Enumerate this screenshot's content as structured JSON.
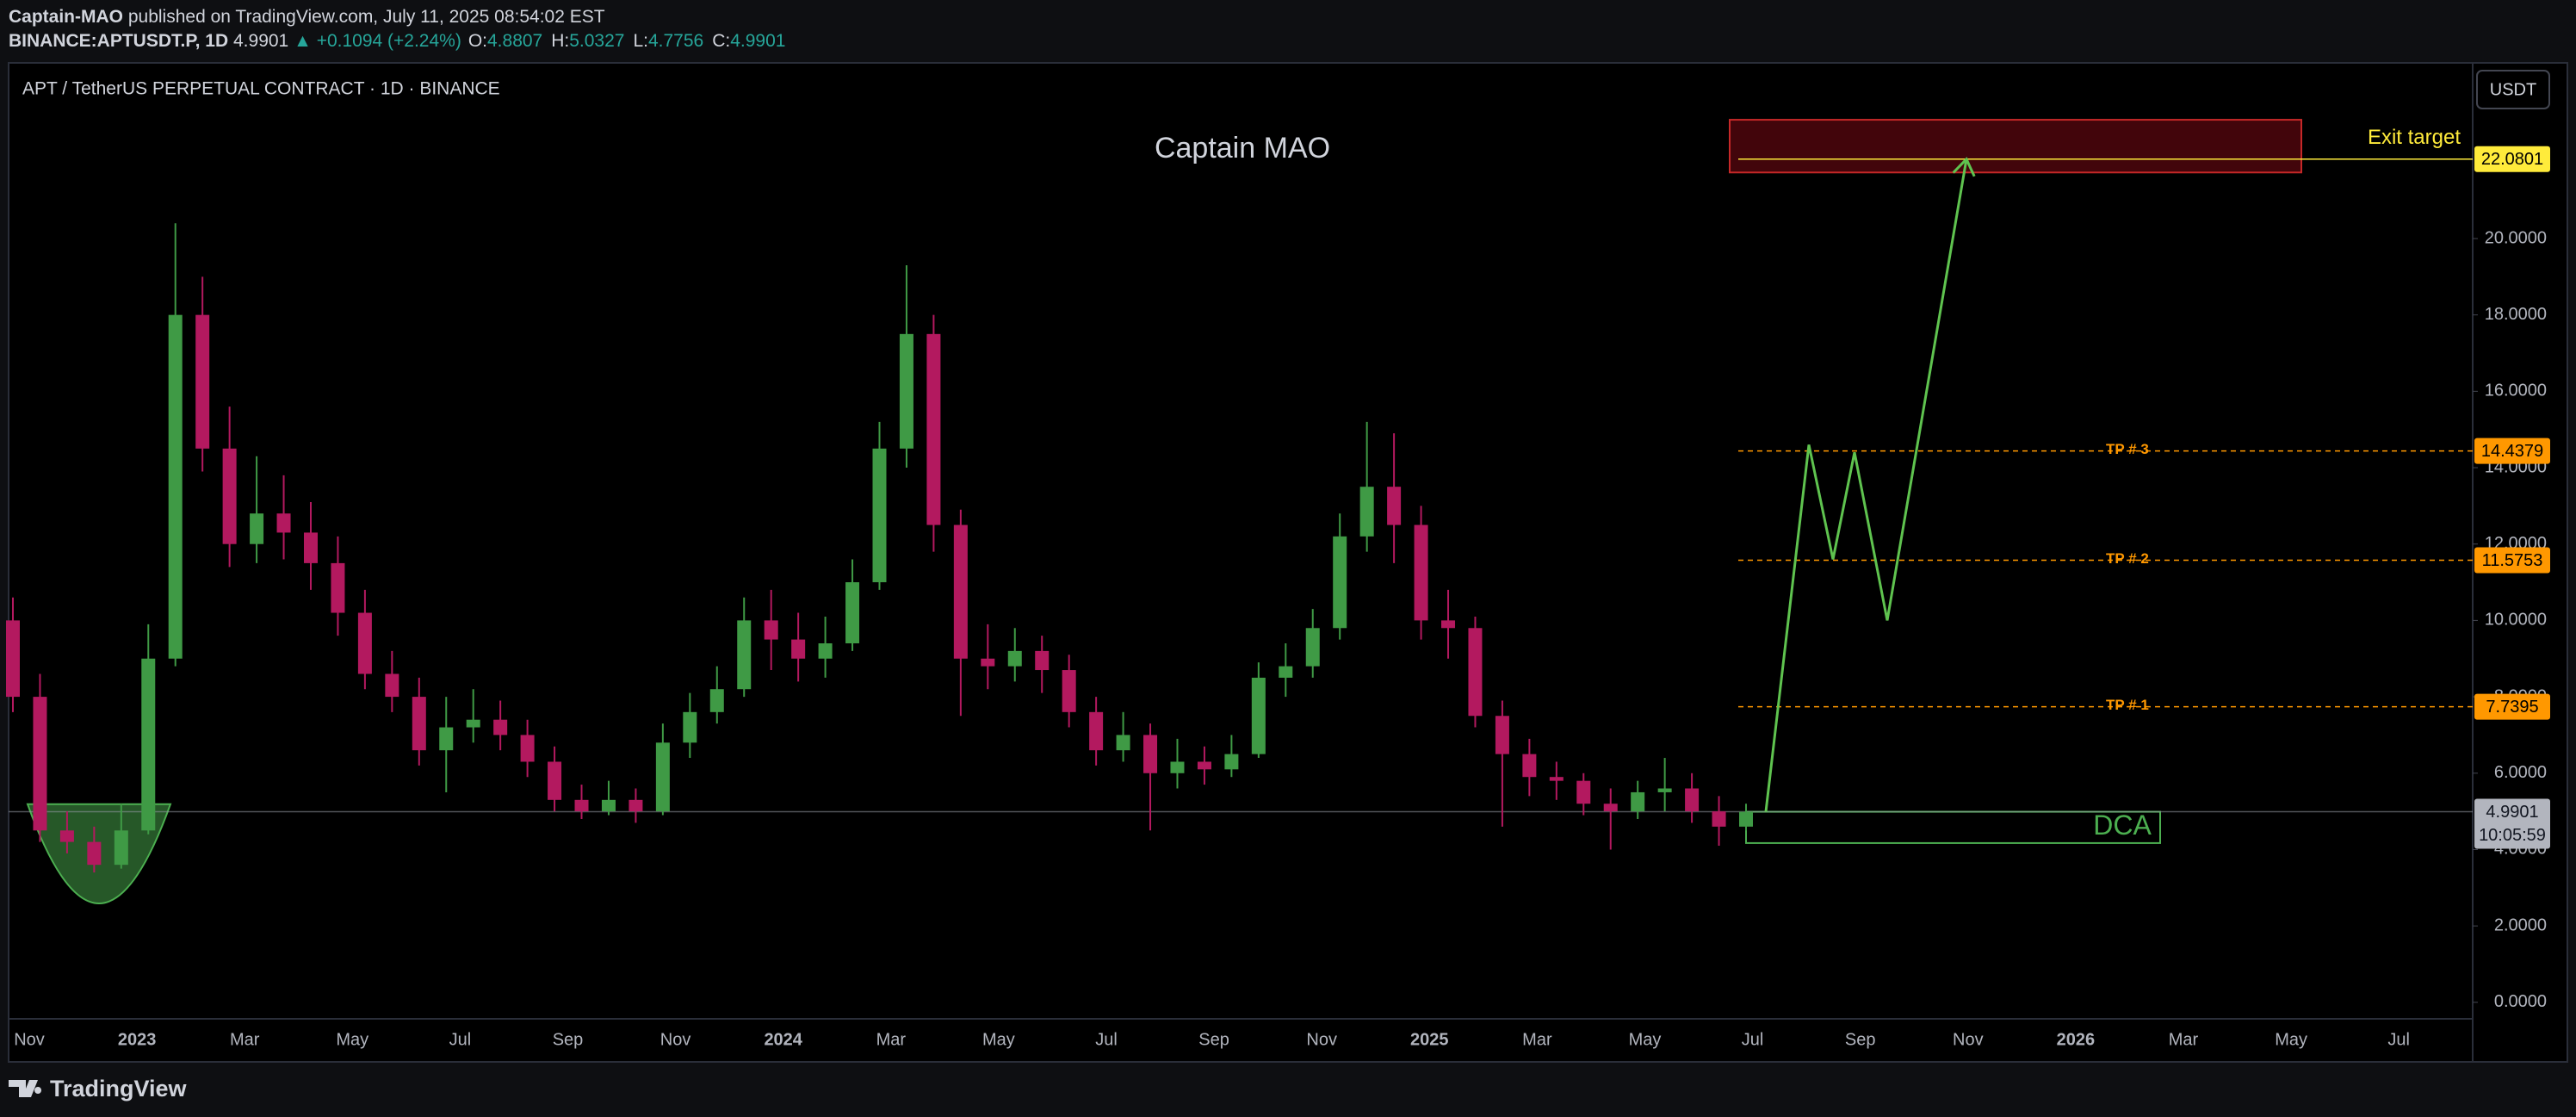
{
  "header": {
    "author": "Captain-MAO",
    "published": "published on TradingView.com, July 11, 2025 08:54:02 EST",
    "symbol": "BINANCE:APTUSDT.P, 1D",
    "last": 4.9901,
    "change": "▲ +0.1094 (+2.24%)",
    "ohlc": [
      {
        "label": "O:",
        "value": 4.8807
      },
      {
        "label": "H:",
        "value": 5.0327
      },
      {
        "label": "L:",
        "value": 4.7756
      },
      {
        "label": "C:",
        "value": 4.9901
      }
    ]
  },
  "footer": {
    "brand": "TradingView"
  },
  "chart_data": {
    "type": "candlestick",
    "title": "APT / TetherUS PERPETUAL CONTRACT · 1D · BINANCE",
    "watermark": "Captain MAO",
    "currency": "USDT",
    "up_color": "#3f9a45",
    "down_color": "#b3195f",
    "ylim": [
      -1.56,
      24.6
    ],
    "yticks": [
      {
        "value": 0,
        "label": "0.0000"
      },
      {
        "value": 2,
        "label": "2.0000"
      },
      {
        "value": 4,
        "label": "4.0000"
      },
      {
        "value": 6,
        "label": "6.0000"
      },
      {
        "value": 8,
        "label": "8.0000"
      },
      {
        "value": 10,
        "label": "10.0000"
      },
      {
        "value": 12,
        "label": "12.0000"
      },
      {
        "value": 14,
        "label": "14.0000"
      },
      {
        "value": 16,
        "label": "16.0000"
      },
      {
        "value": 18,
        "label": "18.0000"
      },
      {
        "value": 20,
        "label": "20.0000"
      }
    ],
    "x_labels": [
      "Nov",
      "2023",
      "Mar",
      "May",
      "Jul",
      "Sep",
      "Nov",
      "2024",
      "Mar",
      "May",
      "Jul",
      "Sep",
      "Nov",
      "2025",
      "Mar",
      "May",
      "Jul",
      "Sep",
      "Nov",
      "2026",
      "Mar",
      "May",
      "Jul"
    ],
    "open": [
      10.0,
      8.0,
      4.5,
      4.2,
      3.6,
      4.5,
      9.0,
      18.0,
      14.5,
      12.0,
      12.8,
      12.3,
      11.5,
      10.2,
      8.6,
      8.0,
      6.6,
      7.2,
      7.4,
      7.0,
      6.3,
      5.3,
      5.0,
      5.3,
      5.0,
      6.8,
      7.6,
      8.2,
      10.0,
      9.5,
      9.0,
      9.4,
      11.0,
      14.5,
      17.5,
      12.5,
      9.0,
      8.8,
      9.2,
      8.7,
      7.6,
      6.6,
      7.0,
      6.0,
      6.3,
      6.1,
      6.5,
      8.5,
      8.8,
      9.8,
      12.2,
      13.5,
      12.5,
      10.0,
      9.8,
      7.5,
      6.5,
      5.9,
      5.8,
      5.2,
      5.0,
      5.5,
      5.6,
      5.0,
      4.6
    ],
    "high": [
      10.6,
      8.6,
      5.0,
      4.6,
      5.2,
      9.9,
      20.4,
      19.0,
      15.6,
      14.3,
      13.8,
      13.1,
      12.2,
      10.8,
      9.2,
      8.5,
      8.0,
      8.2,
      7.9,
      7.4,
      6.7,
      5.7,
      5.8,
      5.6,
      7.3,
      8.1,
      8.8,
      10.6,
      10.8,
      10.2,
      10.1,
      11.6,
      15.2,
      19.3,
      18.0,
      12.9,
      9.9,
      9.8,
      9.6,
      9.1,
      8.0,
      7.6,
      7.3,
      6.9,
      6.7,
      7.0,
      8.9,
      9.4,
      10.3,
      12.8,
      15.2,
      14.9,
      13.0,
      10.8,
      10.1,
      7.9,
      6.9,
      6.3,
      6.0,
      5.6,
      5.8,
      6.4,
      6.0,
      5.4,
      5.2
    ],
    "low": [
      7.6,
      4.2,
      3.9,
      3.4,
      3.5,
      4.4,
      8.8,
      13.9,
      11.4,
      11.5,
      11.6,
      10.8,
      9.6,
      8.2,
      7.6,
      6.2,
      5.5,
      6.8,
      6.6,
      5.9,
      5.0,
      4.8,
      4.9,
      4.7,
      4.9,
      6.4,
      7.3,
      8.0,
      8.7,
      8.4,
      8.5,
      9.2,
      10.8,
      14.0,
      11.8,
      7.5,
      8.2,
      8.4,
      8.1,
      7.2,
      6.2,
      6.3,
      4.5,
      5.6,
      5.7,
      5.9,
      6.4,
      8.0,
      8.5,
      9.5,
      11.8,
      11.5,
      9.5,
      9.0,
      7.2,
      4.6,
      5.4,
      5.3,
      4.9,
      4.0,
      4.8,
      5.0,
      4.7,
      4.1,
      4.5
    ],
    "close": [
      8.0,
      4.5,
      4.2,
      3.6,
      4.5,
      9.0,
      18.0,
      14.5,
      12.0,
      12.8,
      12.3,
      11.5,
      10.2,
      8.6,
      8.0,
      6.6,
      7.2,
      7.4,
      7.0,
      6.3,
      5.3,
      5.0,
      5.3,
      5.0,
      6.8,
      7.6,
      8.2,
      10.0,
      9.5,
      9.0,
      9.4,
      11.0,
      14.5,
      17.5,
      12.5,
      9.0,
      8.8,
      9.2,
      8.7,
      7.6,
      6.6,
      7.0,
      6.0,
      6.3,
      6.1,
      6.5,
      8.5,
      8.8,
      9.8,
      12.2,
      13.5,
      12.5,
      10.0,
      9.8,
      7.5,
      6.5,
      5.9,
      5.8,
      5.2,
      5.0,
      5.5,
      5.6,
      5.0,
      4.6,
      4.99
    ],
    "levels": [
      {
        "label": "TP # 3",
        "value": 14.4379,
        "color": "#ff9800"
      },
      {
        "label": "TP # 2",
        "value": 11.5753,
        "color": "#ff9800"
      },
      {
        "label": "TP # 1",
        "value": 7.7395,
        "color": "#ff9800"
      }
    ],
    "exit": {
      "label": "Exit target",
      "value": 22.0801,
      "zone": [
        21.73,
        23.11
      ],
      "color": "#ffeb3b"
    },
    "dca": {
      "label": "DCA",
      "zone": [
        4.17,
        4.99
      ],
      "color": "#4caf50"
    },
    "cup": [
      2.59,
      5.19
    ],
    "projection": {
      "values": [
        4.99,
        14.6,
        11.6,
        14.4,
        10.0,
        22.08
      ],
      "color": "#5fc34f"
    },
    "last_price": {
      "value": 4.9901,
      "countdown": "10:05:59"
    }
  }
}
